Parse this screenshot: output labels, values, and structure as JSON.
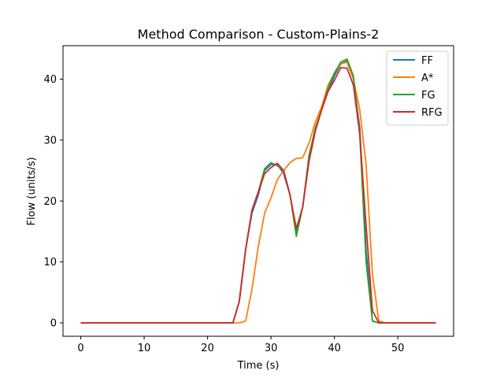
{
  "chart_data": {
    "type": "line",
    "title": "Method Comparison - Custom-Plains-2",
    "xlabel": "Time (s)",
    "ylabel": "Flow (units/s)",
    "xlim": [
      -2.8,
      58.8
    ],
    "ylim": [
      -2.2,
      45.5
    ],
    "xticks": [
      0,
      10,
      20,
      30,
      40,
      50
    ],
    "yticks": [
      0,
      10,
      20,
      30,
      40
    ],
    "grid": false,
    "legend_position": "top-right",
    "x": [
      0,
      1,
      2,
      3,
      4,
      5,
      6,
      7,
      8,
      9,
      10,
      11,
      12,
      13,
      14,
      15,
      16,
      17,
      18,
      19,
      20,
      21,
      22,
      23,
      24,
      25,
      26,
      27,
      28,
      29,
      30,
      31,
      32,
      33,
      34,
      35,
      36,
      37,
      38,
      39,
      40,
      41,
      42,
      43,
      44,
      45,
      46,
      47,
      48,
      49,
      50,
      51,
      52,
      53,
      54,
      55,
      56
    ],
    "series": [
      {
        "name": "FF",
        "color": "#1f77b4",
        "values": [
          0,
          0,
          0,
          0,
          0,
          0,
          0,
          0,
          0,
          0,
          0,
          0,
          0,
          0,
          0,
          0,
          0,
          0,
          0,
          0,
          0,
          0,
          0,
          0,
          0,
          3.5,
          12,
          18,
          21,
          25,
          26,
          26,
          24.5,
          21,
          15,
          19,
          27,
          32,
          35,
          38,
          40.5,
          42.5,
          43,
          40,
          32,
          12,
          0.3,
          0,
          0,
          0,
          0,
          0,
          0,
          0,
          0,
          0,
          0
        ]
      },
      {
        "name": "A*",
        "color": "#ff7f0e",
        "values": [
          0,
          0,
          0,
          0,
          0,
          0,
          0,
          0,
          0,
          0,
          0,
          0,
          0,
          0,
          0,
          0,
          0,
          0,
          0,
          0,
          0,
          0,
          0,
          0,
          0,
          0,
          0.3,
          5.5,
          12.5,
          18,
          20.5,
          23.5,
          25,
          26.3,
          27,
          27.1,
          29.5,
          33,
          35.5,
          39,
          41,
          42.5,
          42.8,
          40,
          35,
          26,
          8,
          0.3,
          0,
          0,
          0,
          0,
          0,
          0,
          0,
          0,
          0
        ]
      },
      {
        "name": "FG",
        "color": "#2ca02c",
        "values": [
          0,
          0,
          0,
          0,
          0,
          0,
          0,
          0,
          0,
          0,
          0,
          0,
          0,
          0,
          0,
          0,
          0,
          0,
          0,
          0,
          0,
          0,
          0,
          0,
          0,
          3.5,
          12,
          18.5,
          21.5,
          25.3,
          26.3,
          25.8,
          25,
          21,
          14.2,
          19,
          27.5,
          32,
          35,
          38.5,
          41,
          42.8,
          43.3,
          40.5,
          31,
          10,
          0.3,
          0,
          0,
          0,
          0,
          0,
          0,
          0,
          0,
          0,
          0
        ]
      },
      {
        "name": "RFG",
        "color": "#d62728",
        "values": [
          0,
          0,
          0,
          0,
          0,
          0,
          0,
          0,
          0,
          0,
          0,
          0,
          0,
          0,
          0,
          0,
          0,
          0,
          0,
          0,
          0,
          0,
          0,
          0,
          0,
          3.5,
          12,
          18.5,
          21.5,
          24.5,
          25.5,
          26.2,
          25,
          21,
          15.5,
          19,
          26.5,
          31.5,
          35,
          38,
          39.8,
          41.9,
          41.8,
          39,
          31,
          16,
          2,
          0,
          0,
          0,
          0,
          0,
          0,
          0,
          0,
          0,
          0
        ]
      }
    ]
  }
}
